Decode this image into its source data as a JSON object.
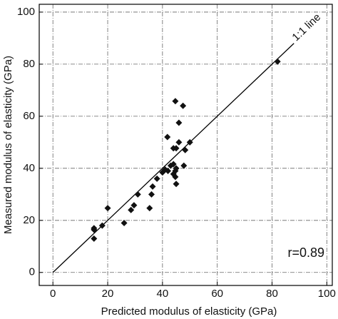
{
  "chart_data": {
    "type": "scatter",
    "xlabel": "Predicted modulus of elasticity (GPa)",
    "ylabel": "Measured modulus of elasticity (GPa)",
    "x": [
      15,
      15,
      15,
      18,
      20,
      26,
      28.5,
      29.6,
      31,
      35.3,
      36,
      36.4,
      38,
      40,
      41,
      42,
      41.8,
      44,
      45,
      44.7,
      46,
      47.5,
      46,
      48.3,
      50,
      47.8,
      43,
      44,
      44.7,
      44.7,
      45,
      44,
      45,
      82
    ],
    "y": [
      13,
      16.4,
      17,
      18,
      24.7,
      19,
      24,
      25.8,
      30,
      24.7,
      30,
      33,
      36,
      38.4,
      39.5,
      39,
      52,
      47.7,
      47.7,
      65.8,
      57.5,
      64,
      50,
      47,
      50,
      41,
      41,
      41.6,
      39,
      36.7,
      34,
      37.8,
      40,
      81
    ],
    "color": "#111111",
    "xlim": [
      -5,
      102
    ],
    "ylim": [
      -5,
      103
    ],
    "xticks": [
      0,
      20,
      40,
      60,
      80,
      100
    ],
    "yticks": [
      0,
      20,
      40,
      60,
      80,
      100
    ],
    "grid": true,
    "reference_line": {
      "label": "1:1 line",
      "x": [
        0,
        88
      ],
      "y": [
        0,
        88
      ]
    },
    "annotation": "r=0.89"
  }
}
